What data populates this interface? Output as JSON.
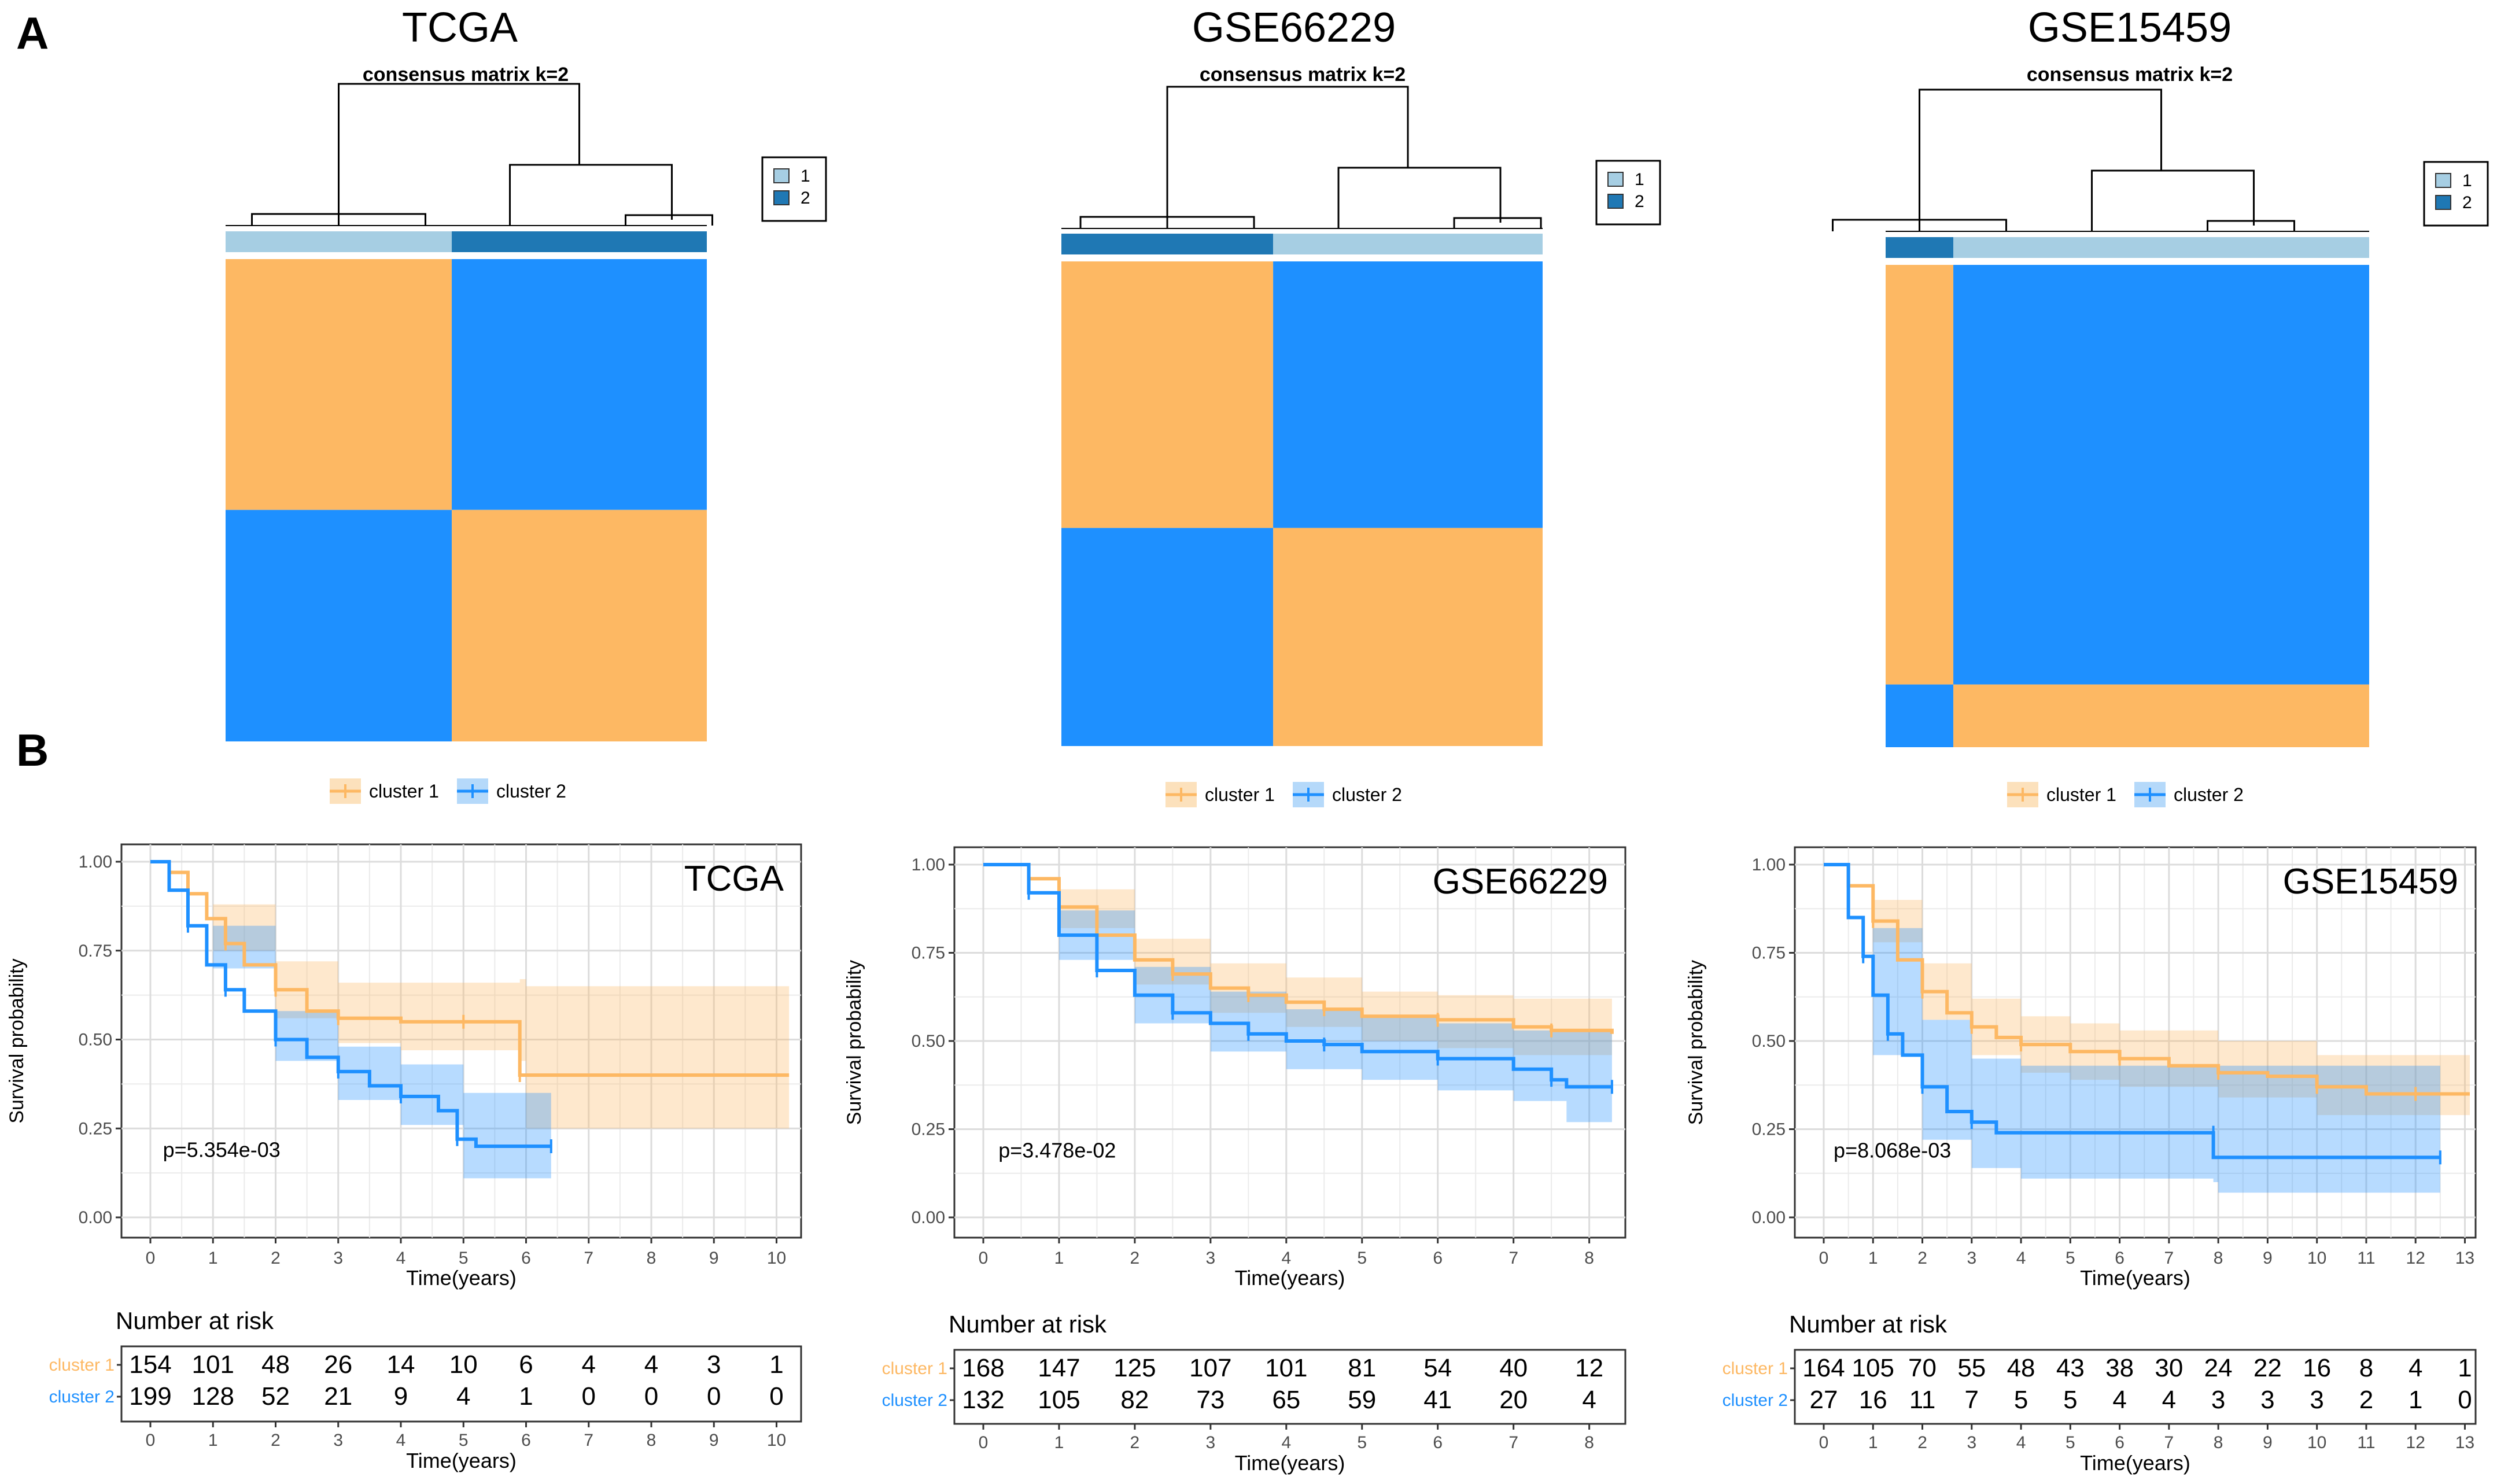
{
  "panels": {
    "a": "A",
    "b": "B"
  },
  "colors": {
    "c1": "#FDB863",
    "c2": "#1E90FF",
    "c1_ci": "#FCE1BC",
    "c2_ci": "#B5D9FA",
    "bar_light": "#A6CEE3",
    "bar_dark": "#1F78B4"
  },
  "chart_data": [
    {
      "type": "heatmap",
      "title": "TCGA",
      "subtitle": "consensus matrix k=2",
      "legend": [
        "1",
        "2"
      ],
      "annotation_order": [
        "1",
        "2"
      ],
      "cluster_fractions": [
        0.47,
        0.53
      ]
    },
    {
      "type": "heatmap",
      "title": "GSE66229",
      "subtitle": "consensus matrix k=2",
      "legend": [
        "1",
        "2"
      ],
      "annotation_order": [
        "2",
        "1"
      ],
      "cluster_fractions": [
        0.44,
        0.56
      ]
    },
    {
      "type": "heatmap",
      "title": "GSE15459",
      "subtitle": "consensus matrix k=2",
      "legend": [
        "1",
        "2"
      ],
      "annotation_order": [
        "2",
        "1"
      ],
      "cluster_fractions": [
        0.14,
        0.86
      ]
    },
    {
      "type": "line",
      "title": "TCGA",
      "legend": [
        "cluster 1",
        "cluster 2"
      ],
      "xlabel": "Time(years)",
      "ylabel": "Survival probability",
      "xlim": [
        0,
        10.3
      ],
      "ylim": [
        0,
        1
      ],
      "xticks": [
        0,
        1,
        2,
        3,
        4,
        5,
        6,
        7,
        8,
        9,
        10
      ],
      "yticks": [
        "0.00",
        "0.25",
        "0.50",
        "0.75",
        "1.00"
      ],
      "pvalue": "p=5.354e-03",
      "series": [
        {
          "name": "cluster 1",
          "points": [
            [
              0,
              1
            ],
            [
              0.3,
              0.97
            ],
            [
              0.6,
              0.91
            ],
            [
              0.9,
              0.84
            ],
            [
              1.2,
              0.77
            ],
            [
              1.5,
              0.71
            ],
            [
              2,
              0.64
            ],
            [
              2.5,
              0.58
            ],
            [
              3,
              0.56
            ],
            [
              4,
              0.55
            ],
            [
              5,
              0.55
            ],
            [
              5.9,
              0.55
            ],
            [
              5.9,
              0.4
            ],
            [
              10.2,
              0.4
            ]
          ],
          "ci_upper": [
            [
              0,
              1
            ],
            [
              1,
              0.88
            ],
            [
              2,
              0.72
            ],
            [
              3,
              0.66
            ],
            [
              4,
              0.66
            ],
            [
              5.9,
              0.67
            ],
            [
              6,
              0.65
            ],
            [
              10.2,
              0.65
            ]
          ],
          "ci_lower": [
            [
              0,
              1
            ],
            [
              1,
              0.75
            ],
            [
              2,
              0.56
            ],
            [
              3,
              0.49
            ],
            [
              4,
              0.47
            ],
            [
              5.9,
              0.44
            ],
            [
              6,
              0.25
            ],
            [
              10.2,
              0.25
            ]
          ]
        },
        {
          "name": "cluster 2",
          "points": [
            [
              0,
              1
            ],
            [
              0.3,
              0.92
            ],
            [
              0.6,
              0.82
            ],
            [
              0.9,
              0.71
            ],
            [
              1.2,
              0.64
            ],
            [
              1.5,
              0.58
            ],
            [
              2,
              0.5
            ],
            [
              2.5,
              0.45
            ],
            [
              3,
              0.41
            ],
            [
              3.5,
              0.37
            ],
            [
              4,
              0.34
            ],
            [
              4.6,
              0.3
            ],
            [
              4.9,
              0.22
            ],
            [
              5.2,
              0.2
            ],
            [
              6.4,
              0.2
            ]
          ],
          "ci_upper": [
            [
              0,
              1
            ],
            [
              1,
              0.82
            ],
            [
              2,
              0.58
            ],
            [
              3,
              0.48
            ],
            [
              4,
              0.43
            ],
            [
              5,
              0.35
            ],
            [
              6.4,
              0.35
            ]
          ],
          "ci_lower": [
            [
              0,
              1
            ],
            [
              1,
              0.7
            ],
            [
              2,
              0.44
            ],
            [
              3,
              0.33
            ],
            [
              4,
              0.26
            ],
            [
              5,
              0.11
            ],
            [
              6.4,
              0.1
            ]
          ]
        }
      ],
      "risk_table": {
        "title": "Number at risk",
        "xlabel": "Time(years)",
        "times": [
          0,
          1,
          2,
          3,
          4,
          5,
          6,
          7,
          8,
          9,
          10
        ],
        "rows": [
          {
            "name": "cluster 1",
            "values": [
              154,
              101,
              48,
              26,
              14,
              10,
              6,
              4,
              4,
              3,
              1
            ]
          },
          {
            "name": "cluster 2",
            "values": [
              199,
              128,
              52,
              21,
              9,
              4,
              1,
              0,
              0,
              0,
              0
            ]
          }
        ]
      }
    },
    {
      "type": "line",
      "title": "GSE66229",
      "legend": [
        "cluster 1",
        "cluster 2"
      ],
      "xlabel": "Time(years)",
      "ylabel": "Survival probability",
      "xlim": [
        0,
        8.4
      ],
      "ylim": [
        0,
        1
      ],
      "xticks": [
        0,
        1,
        2,
        3,
        4,
        5,
        6,
        7,
        8
      ],
      "yticks": [
        "0.00",
        "0.25",
        "0.50",
        "0.75",
        "1.00"
      ],
      "pvalue": "p=3.478e-02",
      "series": [
        {
          "name": "cluster 1",
          "points": [
            [
              0,
              1
            ],
            [
              0.3,
              1
            ],
            [
              0.6,
              0.96
            ],
            [
              1,
              0.88
            ],
            [
              1.5,
              0.8
            ],
            [
              2,
              0.73
            ],
            [
              2.5,
              0.69
            ],
            [
              3,
              0.65
            ],
            [
              3.5,
              0.63
            ],
            [
              4,
              0.61
            ],
            [
              4.5,
              0.59
            ],
            [
              5,
              0.57
            ],
            [
              6,
              0.56
            ],
            [
              7,
              0.54
            ],
            [
              7.5,
              0.53
            ],
            [
              8.3,
              0.52
            ]
          ],
          "ci_upper": [
            [
              0,
              1
            ],
            [
              1,
              0.93
            ],
            [
              2,
              0.79
            ],
            [
              3,
              0.72
            ],
            [
              4,
              0.68
            ],
            [
              5,
              0.64
            ],
            [
              6,
              0.63
            ],
            [
              7,
              0.62
            ],
            [
              8.3,
              0.61
            ]
          ],
          "ci_lower": [
            [
              0,
              1
            ],
            [
              1,
              0.82
            ],
            [
              2,
              0.66
            ],
            [
              3,
              0.58
            ],
            [
              4,
              0.54
            ],
            [
              5,
              0.5
            ],
            [
              6,
              0.48
            ],
            [
              7,
              0.46
            ],
            [
              8.3,
              0.44
            ]
          ]
        },
        {
          "name": "cluster 2",
          "points": [
            [
              0,
              1
            ],
            [
              0.3,
              1
            ],
            [
              0.6,
              0.92
            ],
            [
              1,
              0.8
            ],
            [
              1.5,
              0.7
            ],
            [
              2,
              0.63
            ],
            [
              2.5,
              0.58
            ],
            [
              3,
              0.55
            ],
            [
              3.5,
              0.52
            ],
            [
              4,
              0.5
            ],
            [
              4.5,
              0.49
            ],
            [
              5,
              0.47
            ],
            [
              6,
              0.45
            ],
            [
              7,
              0.42
            ],
            [
              7.5,
              0.39
            ],
            [
              7.7,
              0.37
            ],
            [
              8.3,
              0.37
            ]
          ],
          "ci_upper": [
            [
              0,
              1
            ],
            [
              1,
              0.87
            ],
            [
              2,
              0.71
            ],
            [
              3,
              0.64
            ],
            [
              4,
              0.59
            ],
            [
              5,
              0.57
            ],
            [
              6,
              0.55
            ],
            [
              7,
              0.53
            ],
            [
              8.3,
              0.5
            ]
          ],
          "ci_lower": [
            [
              0,
              1
            ],
            [
              1,
              0.73
            ],
            [
              2,
              0.55
            ],
            [
              3,
              0.47
            ],
            [
              4,
              0.42
            ],
            [
              5,
              0.39
            ],
            [
              6,
              0.36
            ],
            [
              7,
              0.33
            ],
            [
              7.7,
              0.27
            ],
            [
              8.3,
              0.26
            ]
          ]
        }
      ],
      "risk_table": {
        "title": "Number at risk",
        "xlabel": "Time(years)",
        "times": [
          0,
          1,
          2,
          3,
          4,
          5,
          6,
          7,
          8
        ],
        "rows": [
          {
            "name": "cluster 1",
            "values": [
              168,
              147,
              125,
              107,
              101,
              81,
              54,
              40,
              12
            ]
          },
          {
            "name": "cluster 2",
            "values": [
              132,
              105,
              82,
              73,
              65,
              59,
              41,
              20,
              4
            ]
          }
        ]
      }
    },
    {
      "type": "line",
      "title": "GSE15459",
      "legend": [
        "cluster 1",
        "cluster 2"
      ],
      "xlabel": "Time(years)",
      "ylabel": "Survival probability",
      "xlim": [
        0,
        13.1
      ],
      "ylim": [
        0,
        1
      ],
      "xticks": [
        0,
        1,
        2,
        3,
        4,
        5,
        6,
        7,
        8,
        9,
        10,
        11,
        12,
        13
      ],
      "yticks": [
        "0.00",
        "0.25",
        "0.50",
        "0.75",
        "1.00"
      ],
      "pvalue": "p=8.068e-03",
      "series": [
        {
          "name": "cluster 1",
          "points": [
            [
              0,
              1
            ],
            [
              0.5,
              0.94
            ],
            [
              1,
              0.84
            ],
            [
              1.5,
              0.73
            ],
            [
              2,
              0.64
            ],
            [
              2.5,
              0.58
            ],
            [
              3,
              0.54
            ],
            [
              3.5,
              0.51
            ],
            [
              4,
              0.49
            ],
            [
              5,
              0.47
            ],
            [
              6,
              0.45
            ],
            [
              7,
              0.43
            ],
            [
              8,
              0.41
            ],
            [
              9,
              0.4
            ],
            [
              10,
              0.37
            ],
            [
              11,
              0.35
            ],
            [
              12,
              0.35
            ],
            [
              13.1,
              0.35
            ]
          ],
          "ci_upper": [
            [
              0,
              1
            ],
            [
              1,
              0.9
            ],
            [
              2,
              0.72
            ],
            [
              3,
              0.62
            ],
            [
              4,
              0.57
            ],
            [
              5,
              0.55
            ],
            [
              6,
              0.53
            ],
            [
              8,
              0.5
            ],
            [
              10,
              0.46
            ],
            [
              13.1,
              0.44
            ]
          ],
          "ci_lower": [
            [
              0,
              1
            ],
            [
              1,
              0.78
            ],
            [
              2,
              0.56
            ],
            [
              3,
              0.46
            ],
            [
              4,
              0.41
            ],
            [
              5,
              0.39
            ],
            [
              6,
              0.37
            ],
            [
              8,
              0.34
            ],
            [
              10,
              0.29
            ],
            [
              13.1,
              0.26
            ]
          ]
        },
        {
          "name": "cluster 2",
          "points": [
            [
              0,
              1
            ],
            [
              0.5,
              0.85
            ],
            [
              0.8,
              0.74
            ],
            [
              1,
              0.63
            ],
            [
              1.3,
              0.52
            ],
            [
              1.6,
              0.46
            ],
            [
              2,
              0.37
            ],
            [
              2.5,
              0.3
            ],
            [
              3,
              0.27
            ],
            [
              3.5,
              0.24
            ],
            [
              7.9,
              0.24
            ],
            [
              7.9,
              0.17
            ],
            [
              12.5,
              0.17
            ]
          ],
          "ci_upper": [
            [
              0,
              1
            ],
            [
              1,
              0.82
            ],
            [
              2,
              0.56
            ],
            [
              3,
              0.45
            ],
            [
              4,
              0.43
            ],
            [
              7.9,
              0.43
            ],
            [
              8,
              0.43
            ],
            [
              12.5,
              0.43
            ]
          ],
          "ci_lower": [
            [
              0,
              1
            ],
            [
              1,
              0.46
            ],
            [
              2,
              0.22
            ],
            [
              3,
              0.14
            ],
            [
              4,
              0.11
            ],
            [
              7.9,
              0.1
            ],
            [
              8,
              0.07
            ],
            [
              12.5,
              0.07
            ]
          ]
        }
      ],
      "risk_table": {
        "title": "Number at risk",
        "xlabel": "Time(years)",
        "times": [
          0,
          1,
          2,
          3,
          4,
          5,
          6,
          7,
          8,
          9,
          10,
          11,
          12,
          13
        ],
        "rows": [
          {
            "name": "cluster 1",
            "values": [
              164,
              105,
              70,
              55,
              48,
              43,
              38,
              30,
              24,
              22,
              16,
              8,
              4,
              1
            ]
          },
          {
            "name": "cluster 2",
            "values": [
              27,
              16,
              11,
              7,
              5,
              5,
              4,
              4,
              3,
              3,
              3,
              2,
              1,
              0
            ]
          }
        ]
      }
    }
  ]
}
